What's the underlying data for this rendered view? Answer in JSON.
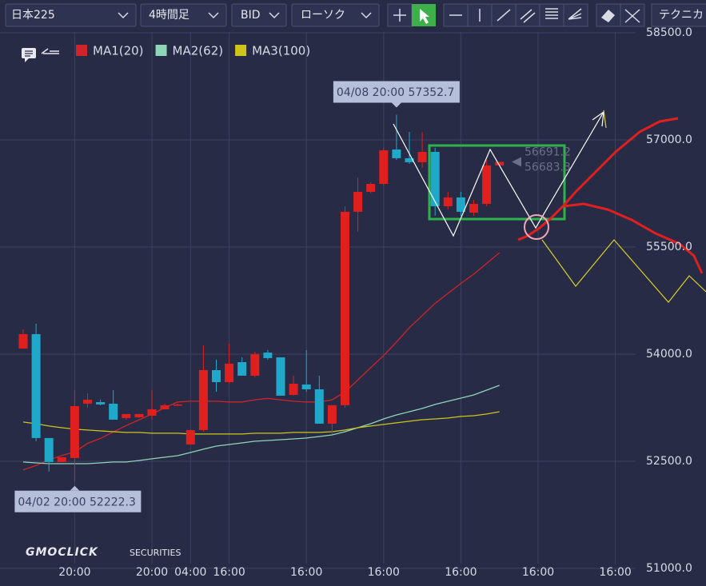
{
  "toolbar": {
    "symbol": "日本225",
    "timeframe": "4時間足",
    "price_type": "BID",
    "chart_style": "ローソク",
    "technical": "テクニカ"
  },
  "chart_data": {
    "type": "candlestick",
    "categories": [
      null,
      null,
      null,
      null,
      "20:00",
      null,
      null,
      null,
      null,
      null,
      "20:00",
      null,
      null,
      "04:00",
      null,
      null,
      "16:00",
      null,
      null,
      null,
      null,
      null,
      "16:00",
      null,
      null,
      null,
      null,
      null,
      "16:00",
      null,
      null,
      null,
      null,
      null,
      "16:00",
      null,
      null,
      null,
      null,
      null,
      "16:00",
      null,
      null,
      null,
      null,
      null,
      "16:00",
      null,
      null,
      null,
      null,
      null,
      null,
      null
    ],
    "open": [
      54078,
      54280,
      52825,
      52489,
      52545,
      53306,
      53328,
      53306,
      53105,
      53116,
      53138,
      53228,
      53284,
      52735,
      52937,
      53776,
      53608,
      53888,
      53698,
      54022,
      53955,
      53429,
      53575,
      53507,
      53026,
      53284,
      55993,
      56272,
      56384,
      56866,
      56743,
      56687,
      56832,
      56071,
      56194,
      55981,
      56104,
      56642,
      null,
      null,
      null,
      null,
      null,
      null,
      null,
      null,
      null,
      null,
      null,
      null,
      null,
      null,
      null,
      null
    ],
    "high": [
      54347,
      54425,
      52825,
      52556,
      53496,
      53451,
      53362,
      53496,
      53161,
      53161,
      53496,
      53306,
      53306,
      52937,
      54123,
      53922,
      54146,
      53955,
      54034,
      54056,
      53955,
      53698,
      54056,
      53698,
      53284,
      56071,
      56474,
      56407,
      56888,
      57352.7,
      57112,
      57112,
      56888,
      56272,
      56272,
      56160,
      56720,
      56691.2,
      null,
      null,
      null,
      null,
      null,
      null,
      null,
      null,
      null,
      null,
      null,
      null,
      null,
      null,
      null,
      null
    ],
    "low": [
      54078,
      52780,
      52355,
      52489,
      52222.3,
      53250,
      53284,
      53082,
      53082,
      53105,
      53082,
      53228,
      53272,
      52735,
      52914,
      53474,
      53586,
      53698,
      53675,
      53922,
      53418,
      53418,
      53474,
      53026,
      52881,
      53250,
      55713,
      56250,
      56362,
      56720,
      56664,
      56608,
      55937,
      56026,
      55937,
      55937,
      56071,
      56642,
      null,
      null,
      null,
      null,
      null,
      null,
      null,
      null,
      null,
      null,
      null,
      null,
      null,
      null,
      null,
      null
    ],
    "close": [
      54280,
      52825,
      52489,
      52556,
      53272,
      53362,
      53295,
      53082,
      53161,
      53161,
      53228,
      53284,
      53295,
      52937,
      53776,
      53608,
      53866,
      53698,
      54000,
      53944,
      53418,
      53586,
      53507,
      53026,
      53284,
      55993,
      56272,
      56384,
      56854,
      56743,
      56687,
      56832,
      56071,
      56194,
      55993,
      56104,
      56642,
      56691.2,
      null,
      null,
      null,
      null,
      null,
      null,
      null,
      null,
      null,
      null,
      null,
      null,
      null,
      null,
      null,
      null
    ],
    "up_color": "#e0201f",
    "down_color": "#1fa8c9",
    "series": [
      {
        "name": "MA1(20)",
        "color": "#d0242a",
        "values": [
          52380,
          52440,
          52520,
          52580,
          52630,
          52750,
          52820,
          52910,
          53000,
          53080,
          53160,
          53250,
          53330,
          53340,
          53340,
          53340,
          53330,
          53330,
          53360,
          53380,
          53360,
          53340,
          53330,
          53330,
          53360,
          53470,
          53640,
          53810,
          53980,
          54170,
          54370,
          54540,
          54710,
          54850,
          54990,
          55120,
          55270,
          55420,
          null,
          null,
          null,
          null,
          null,
          null,
          null,
          null,
          null,
          null,
          null,
          null,
          null,
          null,
          null,
          null
        ]
      },
      {
        "name": "MA2(62)",
        "color": "#8fd6b8",
        "values": [
          52489,
          52477,
          52466,
          52466,
          52466,
          52466,
          52477,
          52489,
          52489,
          52511,
          52534,
          52556,
          52578,
          52623,
          52668,
          52712,
          52735,
          52757,
          52780,
          52791,
          52802,
          52813,
          52825,
          52847,
          52869,
          52914,
          52970,
          53026,
          53093,
          53149,
          53194,
          53239,
          53295,
          53340,
          53384,
          53429,
          53496,
          53563,
          null,
          null,
          null,
          null,
          null,
          null,
          null,
          null,
          null,
          null,
          null,
          null,
          null,
          null,
          null,
          null
        ]
      },
      {
        "name": "MA3(100)",
        "color": "#cfc41c",
        "values": [
          53049,
          53026,
          52993,
          52970,
          52948,
          52937,
          52925,
          52914,
          52903,
          52903,
          52892,
          52892,
          52892,
          52881,
          52881,
          52881,
          52881,
          52881,
          52892,
          52892,
          52892,
          52903,
          52903,
          52903,
          52914,
          52937,
          52970,
          52993,
          53015,
          53038,
          53060,
          53082,
          53093,
          53105,
          53127,
          53138,
          53161,
          53194,
          null,
          null,
          null,
          null,
          null,
          null,
          null,
          null,
          null,
          null,
          null,
          null,
          null,
          null,
          null,
          null
        ]
      }
    ],
    "ylim": [
      50753,
      58623
    ],
    "yticks": [
      {
        "value": 58500,
        "label": "58500.0"
      },
      {
        "value": 57000,
        "label": "57000.0"
      },
      {
        "value": 55500,
        "label": "55500.0"
      },
      {
        "value": 54000,
        "label": "54000.0"
      },
      {
        "value": 52500,
        "label": "52500.0"
      },
      {
        "value": 51000,
        "label": "51000.0"
      }
    ],
    "grid": true,
    "annotations": [
      {
        "label": "04/08 20:00",
        "value": 57352.7
      },
      {
        "label": "04/02 20:00",
        "value": 52222.3
      }
    ],
    "current_prices": [
      56691.2,
      56683.3
    ]
  },
  "logo": {
    "brand": "GMOCLICK",
    "suffix": "SECURITIES"
  }
}
